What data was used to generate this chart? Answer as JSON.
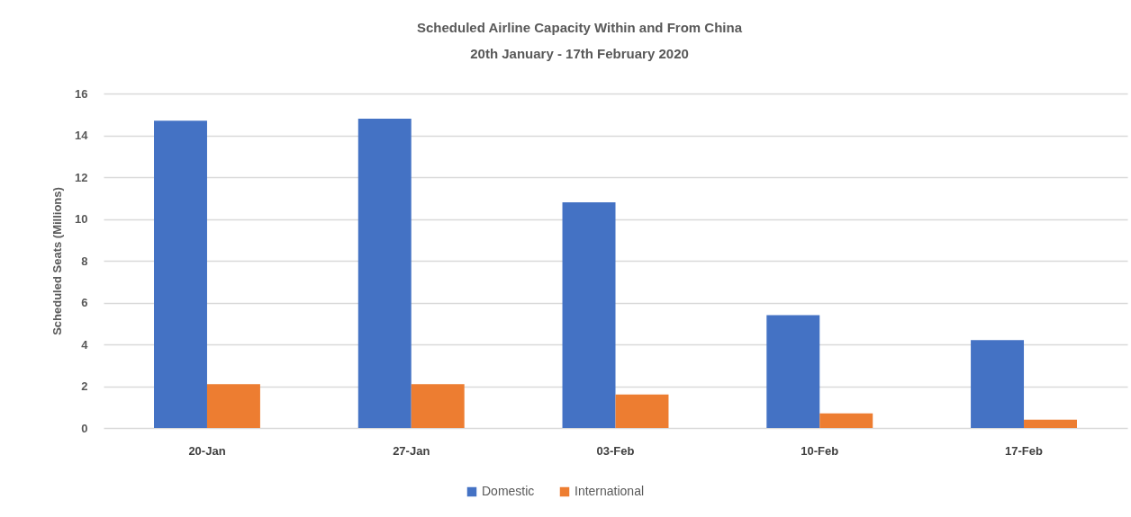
{
  "chart_data": {
    "type": "bar",
    "title": "Scheduled Airline Capacity Within and From China",
    "subtitle": "20th January - 17th February 2020",
    "ylabel": "Scheduled Seats (Millions)",
    "categories": [
      "20-Jan",
      "27-Jan",
      "03-Feb",
      "10-Feb",
      "17-Feb"
    ],
    "series": [
      {
        "name": "Domestic",
        "color": "#4472c4",
        "values": [
          14.7,
          14.8,
          10.8,
          5.4,
          4.2
        ]
      },
      {
        "name": "International",
        "color": "#ed7d31",
        "values": [
          2.1,
          2.1,
          1.6,
          0.7,
          0.4
        ]
      }
    ],
    "ylim": [
      0,
      16
    ],
    "yticks": [
      0,
      2,
      4,
      6,
      8,
      10,
      12,
      14,
      16
    ],
    "grid": "y",
    "legend": "bottom"
  }
}
